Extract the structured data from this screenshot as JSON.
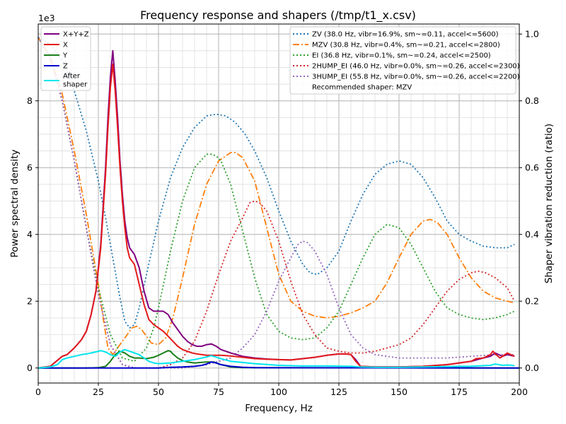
{
  "chart_data": {
    "type": "line",
    "title": "Frequency response and shapers (/tmp/t1_x.csv)",
    "xlabel": "Frequency, Hz",
    "ylabel": "Power spectral density",
    "y2label": "Shaper vibration reduction (ratio)",
    "y_offset_text": "1e3",
    "xlim": [
      0,
      200
    ],
    "ylim": [
      -0.45,
      10.3
    ],
    "y2lim": [
      -0.045,
      1.03
    ],
    "xticks": [
      0,
      25,
      50,
      75,
      100,
      125,
      150,
      175,
      200
    ],
    "yticks": [
      0,
      2,
      4,
      6,
      8
    ],
    "y2ticks": [
      0.0,
      0.2,
      0.4,
      0.6,
      0.8,
      1.0
    ],
    "grid": true,
    "psd_series": [
      {
        "name": "X+Y+Z",
        "color": "#800080",
        "x": [
          0,
          5,
          10,
          12,
          15,
          18,
          20,
          22,
          24,
          26,
          28,
          29,
          30,
          31,
          32,
          33,
          34,
          35,
          36,
          37,
          38,
          40,
          42,
          44,
          46,
          48,
          50,
          52,
          54,
          56,
          58,
          60,
          62,
          64,
          66,
          68,
          70,
          72,
          74,
          76,
          80,
          85,
          90,
          95,
          100,
          105,
          110,
          115,
          120,
          125,
          128,
          130,
          132,
          134,
          140,
          150,
          160,
          170,
          175,
          180,
          185,
          188,
          190,
          193,
          195,
          198
        ],
        "y": [
          0,
          0.05,
          0.35,
          0.4,
          0.6,
          0.85,
          1.1,
          1.6,
          2.3,
          3.7,
          6.0,
          7.5,
          8.7,
          9.5,
          8.6,
          7.5,
          6.2,
          5.2,
          4.4,
          3.9,
          3.6,
          3.4,
          3.0,
          2.3,
          1.8,
          1.7,
          1.7,
          1.7,
          1.6,
          1.35,
          1.15,
          0.95,
          0.8,
          0.7,
          0.65,
          0.65,
          0.7,
          0.72,
          0.65,
          0.55,
          0.45,
          0.35,
          0.3,
          0.27,
          0.25,
          0.24,
          0.28,
          0.32,
          0.38,
          0.42,
          0.42,
          0.4,
          0.25,
          0.05,
          0.03,
          0.03,
          0.05,
          0.1,
          0.15,
          0.2,
          0.3,
          0.35,
          0.45,
          0.35,
          0.4,
          0.35
        ]
      },
      {
        "name": "X",
        "color": "#e31a1c",
        "x": [
          0,
          5,
          10,
          12,
          15,
          18,
          20,
          22,
          24,
          26,
          28,
          29,
          30,
          31,
          32,
          33,
          34,
          35,
          36,
          37,
          38,
          40,
          42,
          44,
          46,
          48,
          50,
          52,
          54,
          56,
          58,
          60,
          62,
          64,
          66,
          68,
          70,
          72,
          74,
          76,
          80,
          85,
          90,
          95,
          100,
          105,
          110,
          115,
          120,
          125,
          128,
          130,
          132,
          134,
          140,
          150,
          160,
          170,
          175,
          180,
          182,
          185,
          188,
          189,
          190,
          192,
          195,
          198
        ],
        "y": [
          0,
          0.05,
          0.35,
          0.4,
          0.6,
          0.85,
          1.1,
          1.6,
          2.3,
          3.6,
          5.8,
          7.2,
          8.4,
          9.1,
          8.3,
          7.2,
          6.0,
          5.0,
          4.2,
          3.6,
          3.3,
          3.1,
          2.5,
          1.9,
          1.45,
          1.3,
          1.2,
          1.1,
          0.95,
          0.8,
          0.65,
          0.55,
          0.5,
          0.45,
          0.42,
          0.4,
          0.38,
          0.38,
          0.38,
          0.38,
          0.36,
          0.32,
          0.28,
          0.26,
          0.25,
          0.24,
          0.28,
          0.32,
          0.38,
          0.42,
          0.42,
          0.4,
          0.2,
          0.05,
          0.03,
          0.03,
          0.05,
          0.1,
          0.15,
          0.2,
          0.28,
          0.3,
          0.4,
          0.5,
          0.42,
          0.3,
          0.45,
          0.35
        ]
      },
      {
        "name": "Y",
        "color": "#1a7f1a",
        "x": [
          0,
          20,
          25,
          28,
          30,
          32,
          34,
          36,
          38,
          40,
          42,
          45,
          48,
          50,
          52,
          54,
          55,
          56,
          58,
          60,
          62,
          65,
          70,
          73,
          75,
          80,
          85,
          200
        ],
        "y": [
          0,
          0,
          0.01,
          0.05,
          0.2,
          0.4,
          0.5,
          0.45,
          0.35,
          0.3,
          0.3,
          0.28,
          0.32,
          0.38,
          0.45,
          0.52,
          0.5,
          0.42,
          0.3,
          0.22,
          0.18,
          0.15,
          0.18,
          0.18,
          0.12,
          0.03,
          0.01,
          0
        ]
      },
      {
        "name": "Z",
        "color": "#0000cd",
        "x": [
          0,
          50,
          55,
          60,
          65,
          68,
          70,
          72,
          74,
          76,
          80,
          85,
          90,
          200
        ],
        "y": [
          0,
          0,
          0.02,
          0.03,
          0.05,
          0.08,
          0.12,
          0.18,
          0.15,
          0.1,
          0.05,
          0.02,
          0.01,
          0
        ]
      },
      {
        "name": "After shaper",
        "color": "#00e5ee",
        "x": [
          0,
          5,
          8,
          10,
          12,
          15,
          18,
          20,
          22,
          25,
          26,
          28,
          30,
          32,
          34,
          35,
          36,
          38,
          40,
          42,
          44,
          46,
          48,
          50,
          55,
          60,
          65,
          70,
          72,
          75,
          80,
          90,
          100,
          110,
          120,
          130,
          134,
          140,
          150,
          160,
          170,
          175,
          180,
          185,
          188,
          190,
          193,
          195,
          198
        ],
        "y": [
          0,
          0.03,
          0.1,
          0.25,
          0.3,
          0.35,
          0.4,
          0.42,
          0.45,
          0.5,
          0.52,
          0.48,
          0.4,
          0.35,
          0.48,
          0.52,
          0.55,
          0.5,
          0.45,
          0.4,
          0.3,
          0.2,
          0.15,
          0.13,
          0.15,
          0.2,
          0.25,
          0.33,
          0.37,
          0.3,
          0.2,
          0.13,
          0.08,
          0.06,
          0.06,
          0.05,
          0.03,
          0.02,
          0.02,
          0.03,
          0.04,
          0.05,
          0.05,
          0.07,
          0.08,
          0.12,
          0.08,
          0.09,
          0.07
        ]
      }
    ],
    "shaper_series": [
      {
        "name": "ZV (38.0 Hz, vibr=16.9%, sm~=0.11, accel<=5600)",
        "color": "#1f77b4",
        "dash": "dotted",
        "x": [
          0,
          5,
          10,
          15,
          20,
          25,
          28,
          30,
          32,
          34,
          36,
          38,
          40,
          42,
          45,
          50,
          55,
          60,
          65,
          70,
          74,
          78,
          82,
          86,
          90,
          95,
          100,
          105,
          110,
          113,
          116,
          120,
          125,
          130,
          135,
          140,
          145,
          150,
          155,
          160,
          165,
          170,
          175,
          180,
          185,
          190,
          195,
          198
        ],
        "y": [
          0.99,
          0.97,
          0.92,
          0.83,
          0.71,
          0.56,
          0.45,
          0.37,
          0.29,
          0.21,
          0.14,
          0.12,
          0.13,
          0.18,
          0.28,
          0.44,
          0.57,
          0.66,
          0.72,
          0.755,
          0.76,
          0.755,
          0.735,
          0.7,
          0.65,
          0.57,
          0.47,
          0.38,
          0.31,
          0.285,
          0.28,
          0.3,
          0.35,
          0.44,
          0.52,
          0.58,
          0.61,
          0.62,
          0.61,
          0.57,
          0.51,
          0.44,
          0.4,
          0.38,
          0.365,
          0.36,
          0.36,
          0.37
        ]
      },
      {
        "name": "MZV (30.8 Hz, vibr=0.4%, sm~=0.21, accel<=2800)",
        "color": "#ff7f0e",
        "dash": "dashdot",
        "x": [
          0,
          5,
          10,
          15,
          20,
          25,
          27,
          29,
          31,
          33,
          35,
          37,
          39,
          41,
          43,
          45,
          47,
          50,
          53,
          56,
          60,
          65,
          70,
          75,
          80,
          82,
          85,
          90,
          95,
          100,
          105,
          110,
          115,
          120,
          125,
          130,
          135,
          140,
          145,
          150,
          155,
          160,
          163,
          166,
          170,
          175,
          180,
          185,
          190,
          195,
          198
        ],
        "y": [
          0.99,
          0.93,
          0.82,
          0.65,
          0.46,
          0.25,
          0.15,
          0.06,
          0.04,
          0.06,
          0.08,
          0.1,
          0.12,
          0.125,
          0.115,
          0.095,
          0.075,
          0.07,
          0.09,
          0.15,
          0.27,
          0.43,
          0.55,
          0.62,
          0.645,
          0.645,
          0.63,
          0.56,
          0.42,
          0.28,
          0.2,
          0.17,
          0.155,
          0.15,
          0.155,
          0.165,
          0.18,
          0.2,
          0.255,
          0.33,
          0.4,
          0.44,
          0.445,
          0.435,
          0.4,
          0.33,
          0.27,
          0.23,
          0.21,
          0.2,
          0.195
        ]
      },
      {
        "name": "EI (36.8 Hz, vibr=0.1%, sm~=0.24, accel<=2500)",
        "color": "#2ca02c",
        "dash": "dotted",
        "x": [
          0,
          5,
          10,
          15,
          20,
          25,
          30,
          35,
          40,
          45,
          48,
          50,
          55,
          60,
          65,
          70,
          72,
          74,
          76,
          80,
          85,
          90,
          95,
          100,
          105,
          110,
          115,
          120,
          125,
          130,
          135,
          140,
          145,
          150,
          155,
          160,
          165,
          170,
          175,
          180,
          185,
          190,
          195,
          198
        ],
        "y": [
          0.99,
          0.93,
          0.8,
          0.62,
          0.42,
          0.24,
          0.1,
          0.03,
          0.02,
          0.06,
          0.12,
          0.18,
          0.35,
          0.5,
          0.6,
          0.64,
          0.64,
          0.635,
          0.62,
          0.55,
          0.41,
          0.27,
          0.16,
          0.11,
          0.09,
          0.085,
          0.09,
          0.12,
          0.17,
          0.25,
          0.33,
          0.4,
          0.43,
          0.42,
          0.37,
          0.3,
          0.23,
          0.18,
          0.16,
          0.15,
          0.145,
          0.15,
          0.16,
          0.17
        ]
      },
      {
        "name": "2HUMP_EI (46.0 Hz, vibr=0.0%, sm~=0.26, accel<=2300)",
        "color": "#d62728",
        "dash": "dotted",
        "x": [
          0,
          5,
          10,
          15,
          20,
          25,
          30,
          35,
          40,
          45,
          50,
          55,
          60,
          65,
          70,
          75,
          80,
          85,
          88,
          90,
          92,
          95,
          100,
          105,
          110,
          115,
          120,
          125,
          130,
          135,
          140,
          145,
          150,
          155,
          160,
          165,
          170,
          175,
          180,
          183,
          186,
          190,
          195,
          198
        ],
        "y": [
          0.99,
          0.93,
          0.8,
          0.62,
          0.42,
          0.22,
          0.07,
          0.01,
          0.0,
          0.0,
          0.0,
          0.01,
          0.03,
          0.08,
          0.17,
          0.28,
          0.38,
          0.45,
          0.495,
          0.5,
          0.495,
          0.47,
          0.38,
          0.26,
          0.16,
          0.1,
          0.06,
          0.05,
          0.045,
          0.045,
          0.05,
          0.06,
          0.07,
          0.09,
          0.13,
          0.18,
          0.23,
          0.265,
          0.285,
          0.29,
          0.285,
          0.27,
          0.24,
          0.2
        ]
      },
      {
        "name": "3HUMP_EI (55.8 Hz, vibr=0.0%, sm~=0.26, accel<=2200)",
        "color": "#9467bd",
        "dash": "dotted",
        "x": [
          0,
          5,
          10,
          15,
          20,
          25,
          30,
          35,
          40,
          45,
          50,
          60,
          70,
          80,
          85,
          90,
          95,
          100,
          105,
          108,
          110,
          112,
          115,
          120,
          125,
          130,
          135,
          140,
          150,
          160,
          170,
          180,
          190,
          198
        ],
        "y": [
          0.99,
          0.93,
          0.8,
          0.62,
          0.42,
          0.22,
          0.07,
          0.01,
          0.0,
          0.0,
          0.0,
          0.0,
          0.01,
          0.03,
          0.06,
          0.1,
          0.17,
          0.26,
          0.33,
          0.37,
          0.38,
          0.375,
          0.35,
          0.28,
          0.18,
          0.1,
          0.06,
          0.04,
          0.03,
          0.03,
          0.03,
          0.035,
          0.04,
          0.04
        ]
      }
    ],
    "legend_left": {
      "placement": "top-left",
      "items": [
        {
          "label": "X+Y+Z",
          "color": "#800080"
        },
        {
          "label": "X",
          "color": "#e31a1c"
        },
        {
          "label": "Y",
          "color": "#1a7f1a"
        },
        {
          "label": "Z",
          "color": "#0000cd"
        },
        {
          "label": "After",
          "label2": "shaper",
          "color": "#00e5ee"
        }
      ]
    },
    "legend_right": {
      "placement": "top-right",
      "items": [
        {
          "label": "ZV (38.0 Hz, vibr=16.9%, sm~=0.11, accel<=5600)",
          "color": "#1f77b4",
          "dash": "dotted"
        },
        {
          "label": "MZV (30.8 Hz, vibr=0.4%, sm~=0.21, accel<=2800)",
          "color": "#ff7f0e",
          "dash": "dashdot"
        },
        {
          "label": "EI (36.8 Hz, vibr=0.1%, sm~=0.24, accel<=2500)",
          "color": "#2ca02c",
          "dash": "dotted"
        },
        {
          "label": "2HUMP_EI (46.0 Hz, vibr=0.0%, sm~=0.26, accel<=2300)",
          "color": "#d62728",
          "dash": "dotted"
        },
        {
          "label": "3HUMP_EI (55.8 Hz, vibr=0.0%, sm~=0.26, accel<=2200)",
          "color": "#9467bd",
          "dash": "dotted"
        },
        {
          "label": "Recommended shaper: MZV",
          "color": "",
          "dash": "none"
        }
      ]
    }
  }
}
